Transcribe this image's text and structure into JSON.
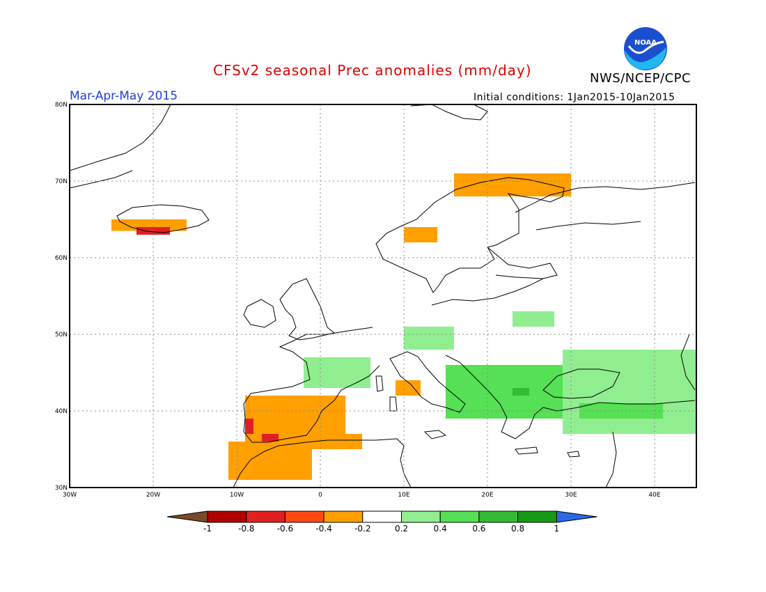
{
  "title": "CFSv2 seasonal Prec anomalies (mm/day)",
  "organization": "NWS/NCEP/CPC",
  "logo_text": "NOAA",
  "period": "Mar-Apr-May 2015",
  "initial_conditions": "Initial conditions: 1Jan2015-10Jan2015",
  "lat_ticks": [
    "80N",
    "70N",
    "60N",
    "50N",
    "40N",
    "30N"
  ],
  "lon_ticks": [
    "30W",
    "20W",
    "10W",
    "0",
    "10E",
    "20E",
    "30E",
    "40E"
  ],
  "colorbar": {
    "labels": [
      "-1",
      "-0.8",
      "-0.6",
      "-0.4",
      "-0.2",
      "0.2",
      "0.4",
      "0.6",
      "0.8",
      "1"
    ],
    "colors": [
      "#7a4a28",
      "#b00000",
      "#e02020",
      "#ff4a10",
      "#ff9f00",
      "#ffffff",
      "#90ee90",
      "#55e055",
      "#33bb33",
      "#169b16",
      "#2a6ae8"
    ]
  },
  "chart_data": {
    "type": "heatmap",
    "title": "CFSv2 seasonal Prec anomalies (mm/day)",
    "xlabel": "",
    "ylabel": "",
    "xlim": [
      -30,
      45
    ],
    "ylim": [
      30,
      80
    ],
    "units": "mm/day",
    "grid": true,
    "anomaly_regions": [
      {
        "lon": [
          -25,
          -16
        ],
        "lat": [
          63.5,
          65
        ],
        "value": -0.3
      },
      {
        "lon": [
          -22,
          -18
        ],
        "lat": [
          63,
          64
        ],
        "value": -0.7
      },
      {
        "lon": [
          16,
          30
        ],
        "lat": [
          68,
          71
        ],
        "value": -0.3
      },
      {
        "lon": [
          10,
          14
        ],
        "lat": [
          62,
          64
        ],
        "value": -0.3
      },
      {
        "lon": [
          -9,
          3
        ],
        "lat": [
          36,
          42
        ],
        "value": -0.3
      },
      {
        "lon": [
          -9,
          -8
        ],
        "lat": [
          37,
          39
        ],
        "value": -0.7
      },
      {
        "lon": [
          -7,
          -5
        ],
        "lat": [
          35,
          37
        ],
        "value": -0.8
      },
      {
        "lon": [
          -11,
          -1
        ],
        "lat": [
          31,
          36
        ],
        "value": -0.3
      },
      {
        "lon": [
          -1,
          5
        ],
        "lat": [
          35,
          37
        ],
        "value": -0.3
      },
      {
        "lon": [
          9,
          12
        ],
        "lat": [
          42,
          44
        ],
        "value": -0.3
      },
      {
        "lon": [
          -2,
          6
        ],
        "lat": [
          43,
          47
        ],
        "value": 0.3
      },
      {
        "lon": [
          10,
          16
        ],
        "lat": [
          48,
          51
        ],
        "value": 0.3
      },
      {
        "lon": [
          23,
          28
        ],
        "lat": [
          51,
          53
        ],
        "value": 0.3
      },
      {
        "lon": [
          15,
          30
        ],
        "lat": [
          39,
          46
        ],
        "value": 0.4
      },
      {
        "lon": [
          23,
          25
        ],
        "lat": [
          42,
          43
        ],
        "value": 0.7
      },
      {
        "lon": [
          29,
          45
        ],
        "lat": [
          37,
          48
        ],
        "value": 0.3
      },
      {
        "lon": [
          31,
          41
        ],
        "lat": [
          39,
          41
        ],
        "value": 0.4
      }
    ]
  }
}
